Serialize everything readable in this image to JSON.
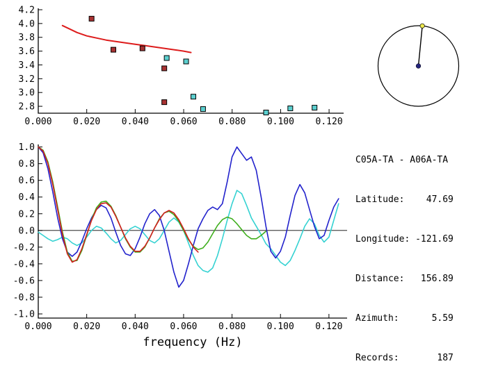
{
  "info": {
    "title": "C05A-TA - A06A-TA",
    "lines": [
      "Latitude:    47.69",
      "Longitude: -121.69",
      "Distance:   156.89",
      "Azimuth:      5.59",
      "Records:       187"
    ]
  },
  "azimuth_plot": {
    "azimuth_deg": 5.59,
    "circle_color": "#000000",
    "line_color": "#000000",
    "center_dot_color": "#24247a",
    "tip_dot_color": "#ece84e"
  },
  "chart_data": [
    {
      "id": "dispersion",
      "type": "scatter",
      "title": "",
      "xlabel": "",
      "ylabel": "",
      "xlim": [
        0,
        0.126
      ],
      "ylim": [
        2.7,
        4.22
      ],
      "grid": false,
      "xticks": {
        "values": [
          0.0,
          0.02,
          0.04,
          0.06,
          0.08,
          0.1,
          0.12
        ],
        "labels": [
          "0.000",
          "0.020",
          "0.040",
          "0.060",
          "0.080",
          "0.100",
          "0.120"
        ]
      },
      "yticks": {
        "values": [
          2.8,
          3.0,
          3.2,
          3.4,
          3.6,
          3.8,
          4.0,
          4.2
        ],
        "labels": [
          "2.8",
          "3.0",
          "3.2",
          "3.4",
          "3.6",
          "3.8",
          "4.0",
          "4.2"
        ]
      },
      "series": [
        {
          "name": "predicted-dispersion-curve",
          "type": "line",
          "color": "#dd1c1c",
          "width": 2,
          "points": [
            [
              0.01,
              3.97
            ],
            [
              0.013,
              3.92
            ],
            [
              0.016,
              3.87
            ],
            [
              0.02,
              3.82
            ],
            [
              0.024,
              3.79
            ],
            [
              0.028,
              3.76
            ],
            [
              0.032,
              3.74
            ],
            [
              0.036,
              3.72
            ],
            [
              0.04,
              3.7
            ],
            [
              0.044,
              3.68
            ],
            [
              0.048,
              3.66
            ],
            [
              0.052,
              3.64
            ],
            [
              0.056,
              3.62
            ],
            [
              0.06,
              3.6
            ],
            [
              0.063,
              3.58
            ]
          ]
        },
        {
          "name": "red-picks",
          "type": "square",
          "color": "#a83232",
          "width": 1,
          "points": [
            [
              0.022,
              4.07
            ],
            [
              0.031,
              3.62
            ],
            [
              0.043,
              3.64
            ],
            [
              0.052,
              3.35
            ],
            [
              0.052,
              2.86
            ]
          ]
        },
        {
          "name": "cyan-picks",
          "type": "square",
          "color": "#5ccfcf",
          "width": 1,
          "points": [
            [
              0.053,
              3.5
            ],
            [
              0.061,
              3.45
            ],
            [
              0.064,
              2.94
            ],
            [
              0.068,
              2.76
            ],
            [
              0.094,
              2.71
            ],
            [
              0.104,
              2.77
            ],
            [
              0.114,
              2.78
            ]
          ]
        }
      ]
    },
    {
      "id": "spectra",
      "type": "line",
      "title": "",
      "xlabel": "frequency (Hz)",
      "ylabel": "",
      "xlim": [
        0,
        0.1275
      ],
      "ylim": [
        -1.05,
        1.03
      ],
      "grid": false,
      "zero_line": true,
      "xticks": {
        "values": [
          0.0,
          0.02,
          0.04,
          0.06,
          0.08,
          0.1,
          0.12
        ],
        "labels": [
          "0.000",
          "0.020",
          "0.040",
          "0.060",
          "0.080",
          "0.100",
          "0.120"
        ]
      },
      "yticks": {
        "values": [
          -1.0,
          -0.8,
          -0.6,
          -0.4,
          -0.2,
          0.0,
          0.2,
          0.4,
          0.6,
          0.8,
          1.0
        ],
        "labels": [
          "-1.0",
          "-0.8",
          "-0.6",
          "-0.4",
          "-0.2",
          "0.0",
          "0.2",
          "0.4",
          "0.6",
          "0.8",
          "1.0"
        ]
      },
      "series": [
        {
          "name": "observed-imag-spectrum",
          "type": "line",
          "color": "#35d2d2",
          "width": 1.6,
          "points": [
            [
              0.0,
              -0.02
            ],
            [
              0.002,
              -0.06
            ],
            [
              0.004,
              -0.1
            ],
            [
              0.006,
              -0.13
            ],
            [
              0.008,
              -0.11
            ],
            [
              0.01,
              -0.08
            ],
            [
              0.012,
              -0.1
            ],
            [
              0.014,
              -0.15
            ],
            [
              0.016,
              -0.18
            ],
            [
              0.018,
              -0.15
            ],
            [
              0.02,
              -0.08
            ],
            [
              0.022,
              0.0
            ],
            [
              0.024,
              0.05
            ],
            [
              0.026,
              0.03
            ],
            [
              0.028,
              -0.03
            ],
            [
              0.03,
              -0.1
            ],
            [
              0.032,
              -0.15
            ],
            [
              0.034,
              -0.12
            ],
            [
              0.036,
              -0.05
            ],
            [
              0.038,
              0.02
            ],
            [
              0.04,
              0.05
            ],
            [
              0.042,
              0.02
            ],
            [
              0.044,
              -0.05
            ],
            [
              0.046,
              -0.12
            ],
            [
              0.048,
              -0.15
            ],
            [
              0.05,
              -0.1
            ],
            [
              0.052,
              0.0
            ],
            [
              0.054,
              0.1
            ],
            [
              0.056,
              0.15
            ],
            [
              0.058,
              0.1
            ],
            [
              0.06,
              0.0
            ],
            [
              0.062,
              -0.15
            ],
            [
              0.064,
              -0.3
            ],
            [
              0.066,
              -0.42
            ],
            [
              0.068,
              -0.48
            ],
            [
              0.07,
              -0.5
            ],
            [
              0.072,
              -0.45
            ],
            [
              0.074,
              -0.3
            ],
            [
              0.076,
              -0.1
            ],
            [
              0.078,
              0.12
            ],
            [
              0.08,
              0.32
            ],
            [
              0.082,
              0.48
            ],
            [
              0.084,
              0.44
            ],
            [
              0.086,
              0.3
            ],
            [
              0.088,
              0.15
            ],
            [
              0.09,
              0.05
            ],
            [
              0.092,
              -0.05
            ],
            [
              0.094,
              -0.16
            ],
            [
              0.096,
              -0.22
            ],
            [
              0.098,
              -0.3
            ],
            [
              0.1,
              -0.38
            ],
            [
              0.102,
              -0.42
            ],
            [
              0.104,
              -0.36
            ],
            [
              0.106,
              -0.24
            ],
            [
              0.108,
              -0.1
            ],
            [
              0.11,
              0.05
            ],
            [
              0.112,
              0.14
            ],
            [
              0.114,
              0.08
            ],
            [
              0.116,
              -0.06
            ],
            [
              0.118,
              -0.14
            ],
            [
              0.12,
              -0.08
            ],
            [
              0.122,
              0.12
            ],
            [
              0.124,
              0.32
            ]
          ]
        },
        {
          "name": "observed-real-spectrum",
          "type": "line",
          "color": "#2222cc",
          "width": 1.6,
          "points": [
            [
              0.0,
              1.0
            ],
            [
              0.002,
              0.93
            ],
            [
              0.004,
              0.74
            ],
            [
              0.006,
              0.46
            ],
            [
              0.008,
              0.15
            ],
            [
              0.01,
              -0.1
            ],
            [
              0.012,
              -0.26
            ],
            [
              0.014,
              -0.31
            ],
            [
              0.016,
              -0.26
            ],
            [
              0.018,
              -0.13
            ],
            [
              0.02,
              0.02
            ],
            [
              0.022,
              0.15
            ],
            [
              0.024,
              0.25
            ],
            [
              0.026,
              0.3
            ],
            [
              0.028,
              0.27
            ],
            [
              0.03,
              0.15
            ],
            [
              0.032,
              -0.02
            ],
            [
              0.034,
              -0.18
            ],
            [
              0.036,
              -0.28
            ],
            [
              0.038,
              -0.3
            ],
            [
              0.04,
              -0.22
            ],
            [
              0.042,
              -0.08
            ],
            [
              0.044,
              0.08
            ],
            [
              0.046,
              0.2
            ],
            [
              0.048,
              0.25
            ],
            [
              0.05,
              0.18
            ],
            [
              0.052,
              0.0
            ],
            [
              0.054,
              -0.25
            ],
            [
              0.056,
              -0.5
            ],
            [
              0.058,
              -0.68
            ],
            [
              0.06,
              -0.6
            ],
            [
              0.062,
              -0.4
            ],
            [
              0.064,
              -0.18
            ],
            [
              0.066,
              0.02
            ],
            [
              0.068,
              0.14
            ],
            [
              0.07,
              0.24
            ],
            [
              0.072,
              0.28
            ],
            [
              0.074,
              0.25
            ],
            [
              0.076,
              0.32
            ],
            [
              0.078,
              0.58
            ],
            [
              0.08,
              0.88
            ],
            [
              0.082,
              1.0
            ],
            [
              0.084,
              0.92
            ],
            [
              0.086,
              0.84
            ],
            [
              0.088,
              0.88
            ],
            [
              0.09,
              0.72
            ],
            [
              0.092,
              0.4
            ],
            [
              0.094,
              0.05
            ],
            [
              0.096,
              -0.25
            ],
            [
              0.098,
              -0.33
            ],
            [
              0.1,
              -0.25
            ],
            [
              0.102,
              -0.08
            ],
            [
              0.104,
              0.18
            ],
            [
              0.106,
              0.42
            ],
            [
              0.108,
              0.55
            ],
            [
              0.11,
              0.45
            ],
            [
              0.112,
              0.25
            ],
            [
              0.114,
              0.05
            ],
            [
              0.116,
              -0.1
            ],
            [
              0.118,
              -0.06
            ],
            [
              0.12,
              0.12
            ],
            [
              0.122,
              0.28
            ],
            [
              0.124,
              0.38
            ]
          ]
        },
        {
          "name": "fit-long-spectrum",
          "type": "line",
          "color": "#3fae1d",
          "width": 1.6,
          "points": [
            [
              0.0,
              1.0
            ],
            [
              0.002,
              0.96
            ],
            [
              0.004,
              0.82
            ],
            [
              0.006,
              0.58
            ],
            [
              0.008,
              0.28
            ],
            [
              0.01,
              -0.02
            ],
            [
              0.012,
              -0.26
            ],
            [
              0.014,
              -0.37
            ],
            [
              0.016,
              -0.36
            ],
            [
              0.018,
              -0.24
            ],
            [
              0.02,
              -0.06
            ],
            [
              0.022,
              0.13
            ],
            [
              0.024,
              0.27
            ],
            [
              0.026,
              0.34
            ],
            [
              0.028,
              0.35
            ],
            [
              0.03,
              0.29
            ],
            [
              0.032,
              0.18
            ],
            [
              0.034,
              0.04
            ],
            [
              0.036,
              -0.1
            ],
            [
              0.038,
              -0.2
            ],
            [
              0.04,
              -0.26
            ],
            [
              0.042,
              -0.26
            ],
            [
              0.044,
              -0.2
            ],
            [
              0.046,
              -0.09
            ],
            [
              0.048,
              0.03
            ],
            [
              0.05,
              0.14
            ],
            [
              0.052,
              0.21
            ],
            [
              0.054,
              0.23
            ],
            [
              0.056,
              0.19
            ],
            [
              0.058,
              0.11
            ],
            [
              0.06,
              0.0
            ],
            [
              0.062,
              -0.11
            ],
            [
              0.064,
              -0.19
            ],
            [
              0.066,
              -0.23
            ],
            [
              0.068,
              -0.21
            ],
            [
              0.07,
              -0.14
            ],
            [
              0.072,
              -0.04
            ],
            [
              0.074,
              0.06
            ],
            [
              0.076,
              0.13
            ],
            [
              0.078,
              0.16
            ],
            [
              0.08,
              0.14
            ],
            [
              0.082,
              0.08
            ],
            [
              0.084,
              0.01
            ],
            [
              0.086,
              -0.06
            ],
            [
              0.088,
              -0.1
            ],
            [
              0.09,
              -0.1
            ],
            [
              0.092,
              -0.06
            ],
            [
              0.094,
              -0.01
            ]
          ]
        },
        {
          "name": "fit-short-spectrum",
          "type": "line",
          "color": "#d21f1f",
          "width": 1.6,
          "points": [
            [
              0.0,
              1.0
            ],
            [
              0.002,
              0.95
            ],
            [
              0.004,
              0.8
            ],
            [
              0.006,
              0.55
            ],
            [
              0.008,
              0.25
            ],
            [
              0.01,
              -0.05
            ],
            [
              0.012,
              -0.28
            ],
            [
              0.014,
              -0.38
            ],
            [
              0.016,
              -0.35
            ],
            [
              0.018,
              -0.22
            ],
            [
              0.02,
              -0.05
            ],
            [
              0.022,
              0.12
            ],
            [
              0.024,
              0.25
            ],
            [
              0.026,
              0.32
            ],
            [
              0.028,
              0.33
            ],
            [
              0.03,
              0.28
            ],
            [
              0.032,
              0.17
            ],
            [
              0.034,
              0.04
            ],
            [
              0.036,
              -0.09
            ],
            [
              0.038,
              -0.19
            ],
            [
              0.04,
              -0.25
            ],
            [
              0.042,
              -0.25
            ],
            [
              0.044,
              -0.19
            ],
            [
              0.046,
              -0.09
            ],
            [
              0.048,
              0.03
            ],
            [
              0.05,
              0.13
            ],
            [
              0.052,
              0.21
            ],
            [
              0.054,
              0.24
            ],
            [
              0.056,
              0.21
            ],
            [
              0.058,
              0.13
            ],
            [
              0.06,
              0.02
            ],
            [
              0.062,
              -0.1
            ],
            [
              0.064,
              -0.2
            ],
            [
              0.066,
              -0.26
            ]
          ]
        }
      ]
    }
  ]
}
